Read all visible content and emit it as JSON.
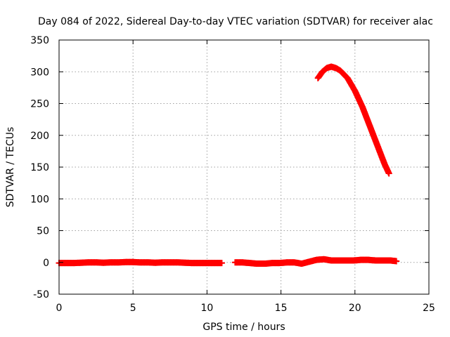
{
  "chart_data": {
    "type": "scatter",
    "title": "Day 084 of 2022, Sidereal Day-to-day VTEC variation (SDTVAR) for receiver alac",
    "xlabel": "GPS time / hours",
    "ylabel": "SDTVAR / TECUs",
    "xlim": [
      0,
      25
    ],
    "ylim": [
      -50,
      350
    ],
    "xticks": [
      "0",
      "5",
      "10",
      "15",
      "20",
      "25"
    ],
    "yticks": [
      "-50",
      "0",
      "50",
      "100",
      "150",
      "200",
      "250",
      "300",
      "350"
    ],
    "grid": true,
    "legend": "none",
    "marker": "plus",
    "series": [
      {
        "color": "#ff0000",
        "segments": [
          {
            "x": [
              0.0,
              0.5,
              1.0,
              1.5,
              2.0,
              2.5,
              3.0,
              3.5,
              4.0,
              4.5,
              5.0,
              5.5,
              6.0,
              6.5,
              7.0,
              7.5,
              8.0,
              8.5,
              9.0,
              9.5,
              10.0,
              10.5,
              11.0
            ],
            "y": [
              -1,
              -1,
              -1,
              -0.5,
              0,
              0,
              -0.5,
              0,
              0,
              0.5,
              0.5,
              0,
              0,
              -0.5,
              0,
              0,
              0,
              -0.5,
              -1,
              -1,
              -1,
              -1,
              -1
            ]
          },
          {
            "x": [
              11.9,
              12.4,
              12.9,
              13.4,
              13.9,
              14.4,
              14.9,
              15.4,
              15.9,
              16.4,
              16.9,
              17.4,
              17.9,
              18.4,
              18.9,
              19.4,
              19.9,
              20.4,
              20.9,
              21.4,
              21.9,
              22.4,
              22.8
            ],
            "y": [
              0,
              0,
              -1,
              -2,
              -2,
              -1,
              -1,
              0,
              0,
              -2,
              1,
              4,
              5,
              3,
              3,
              3,
              3,
              4,
              4,
              3,
              3,
              3,
              2
            ]
          },
          {
            "x": [
              17.5,
              17.8,
              18.1,
              18.4,
              18.7,
              19.0,
              19.5,
              20.0,
              20.5,
              21.0,
              21.5,
              22.0,
              22.3
            ],
            "y": [
              290,
              300,
              306,
              308,
              306,
              302,
              290,
              270,
              245,
              215,
              185,
              155,
              140
            ]
          }
        ]
      }
    ]
  }
}
